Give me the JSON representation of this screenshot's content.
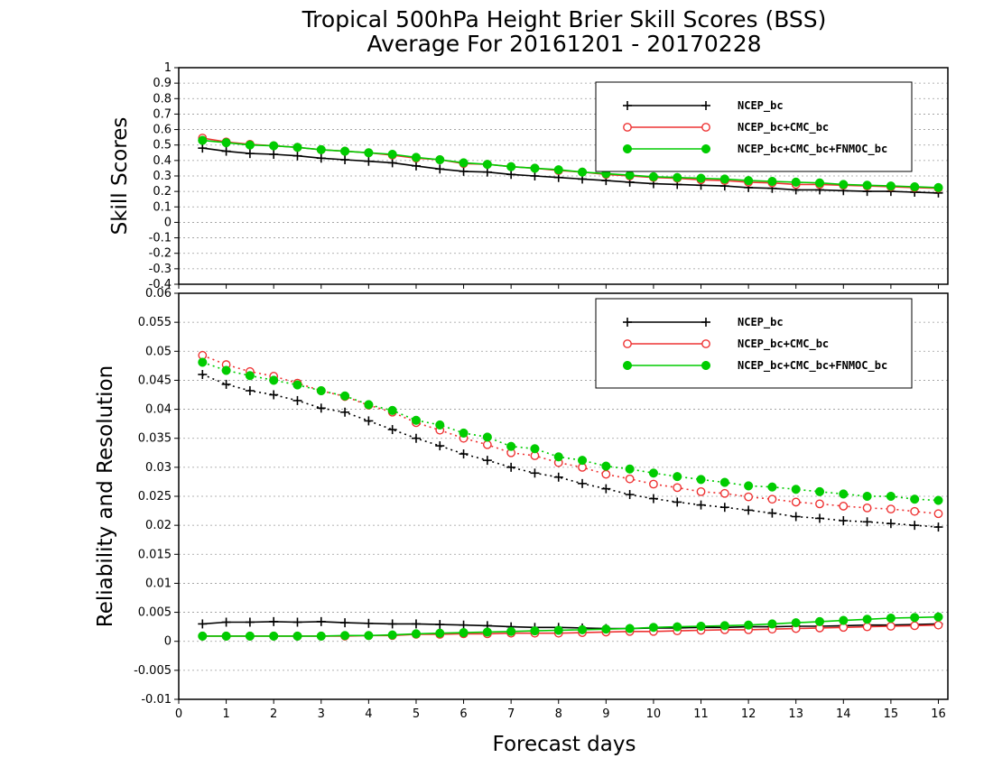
{
  "title_line1": "Tropical 500hPa Height Brier Skill Scores (BSS)",
  "title_line2": "Average For 20161201 - 20170228",
  "xlabel": "Forecast days",
  "colors": {
    "NCEP_bc": "#000000",
    "NCEP_bc+CMC_bc": "#ee3333",
    "NCEP_bc+CMC_bc+FNMOC_bc": "#00cc00"
  },
  "chart_data": [
    {
      "type": "line",
      "panel": "top",
      "ylabel": "Skill Scores",
      "xlim": [
        0,
        16.2
      ],
      "ylim": [
        -0.4,
        1.0
      ],
      "xticks": [
        "0",
        "1",
        "2",
        "3",
        "4",
        "5",
        "6",
        "7",
        "8",
        "9",
        "10",
        "11",
        "12",
        "13",
        "14",
        "15",
        "16"
      ],
      "yticks": [
        "1",
        "0.9",
        "0.8",
        "0.7",
        "0.6",
        "0.5",
        "0.4",
        "0.3",
        "0.2",
        "0.1",
        "0",
        "-0.1",
        "-0.2",
        "-0.3",
        "-0.4"
      ],
      "grid": true,
      "legend_position": "top-right",
      "x": [
        0.5,
        1,
        1.5,
        2,
        2.5,
        3,
        3.5,
        4,
        4.5,
        5,
        5.5,
        6,
        6.5,
        7,
        7.5,
        8,
        8.5,
        9,
        9.5,
        10,
        10.5,
        11,
        11.5,
        12,
        12.5,
        13,
        13.5,
        14,
        14.5,
        15,
        15.5,
        16
      ],
      "series": [
        {
          "name": "NCEP_bc",
          "marker": "plus",
          "style": "solid",
          "values": [
            0.48,
            0.46,
            0.445,
            0.44,
            0.43,
            0.415,
            0.405,
            0.395,
            0.385,
            0.365,
            0.345,
            0.33,
            0.325,
            0.31,
            0.3,
            0.29,
            0.28,
            0.27,
            0.26,
            0.25,
            0.245,
            0.24,
            0.235,
            0.225,
            0.22,
            0.21,
            0.21,
            0.205,
            0.2,
            0.2,
            0.195,
            0.19
          ]
        },
        {
          "name": "NCEP_bc+CMC_bc",
          "marker": "open-circle",
          "style": "solid",
          "values": [
            0.545,
            0.52,
            0.505,
            0.495,
            0.485,
            0.47,
            0.46,
            0.45,
            0.435,
            0.415,
            0.405,
            0.38,
            0.375,
            0.36,
            0.35,
            0.335,
            0.325,
            0.31,
            0.3,
            0.29,
            0.285,
            0.275,
            0.27,
            0.26,
            0.255,
            0.245,
            0.245,
            0.24,
            0.235,
            0.23,
            0.225,
            0.22
          ]
        },
        {
          "name": "NCEP_bc+CMC_bc+FNMOC_bc",
          "marker": "filled-circle",
          "style": "solid",
          "values": [
            0.53,
            0.515,
            0.5,
            0.495,
            0.485,
            0.47,
            0.46,
            0.45,
            0.44,
            0.42,
            0.405,
            0.385,
            0.375,
            0.36,
            0.35,
            0.34,
            0.325,
            0.315,
            0.305,
            0.295,
            0.29,
            0.285,
            0.28,
            0.27,
            0.265,
            0.26,
            0.255,
            0.245,
            0.24,
            0.235,
            0.23,
            0.225
          ]
        }
      ]
    },
    {
      "type": "line",
      "panel": "bottom",
      "ylabel": "Reliability and Resolution",
      "xlim": [
        0,
        16.2
      ],
      "ylim": [
        -0.01,
        0.06
      ],
      "xticks": [
        "0",
        "1",
        "2",
        "3",
        "4",
        "5",
        "6",
        "7",
        "8",
        "9",
        "10",
        "11",
        "12",
        "13",
        "14",
        "15",
        "16"
      ],
      "yticks": [
        "0.06",
        "0.055",
        "0.05",
        "0.045",
        "0.04",
        "0.035",
        "0.03",
        "0.025",
        "0.02",
        "0.015",
        "0.01",
        "0.005",
        "0",
        "-0.005",
        "-0.01"
      ],
      "grid": true,
      "legend_position": "top-right",
      "x": [
        0.5,
        1,
        1.5,
        2,
        2.5,
        3,
        3.5,
        4,
        4.5,
        5,
        5.5,
        6,
        6.5,
        7,
        7.5,
        8,
        8.5,
        9,
        9.5,
        10,
        10.5,
        11,
        11.5,
        12,
        12.5,
        13,
        13.5,
        14,
        14.5,
        15,
        15.5,
        16
      ],
      "series": [
        {
          "name": "NCEP_bc",
          "marker": "plus",
          "style": "dotted",
          "values": [
            0.046,
            0.0443,
            0.0432,
            0.0425,
            0.0415,
            0.0402,
            0.0395,
            0.038,
            0.0365,
            0.035,
            0.0337,
            0.0323,
            0.0312,
            0.03,
            0.029,
            0.0283,
            0.0272,
            0.0263,
            0.0253,
            0.0246,
            0.024,
            0.0235,
            0.0231,
            0.0226,
            0.0221,
            0.0215,
            0.0212,
            0.0208,
            0.0206,
            0.0203,
            0.02,
            0.0197
          ]
        },
        {
          "name": "NCEP_bc+CMC_bc",
          "marker": "open-circle",
          "style": "dotted",
          "values": [
            0.0493,
            0.0477,
            0.0465,
            0.0457,
            0.0445,
            0.0432,
            0.0422,
            0.0407,
            0.0395,
            0.0377,
            0.0364,
            0.035,
            0.0339,
            0.0325,
            0.032,
            0.0308,
            0.03,
            0.0288,
            0.028,
            0.0271,
            0.0265,
            0.0258,
            0.0255,
            0.0249,
            0.0245,
            0.024,
            0.0237,
            0.0233,
            0.023,
            0.0228,
            0.0224,
            0.022
          ]
        },
        {
          "name": "NCEP_bc+CMC_bc+FNMOC_bc",
          "marker": "filled-circle",
          "style": "dotted",
          "values": [
            0.0481,
            0.0467,
            0.0458,
            0.045,
            0.0442,
            0.0432,
            0.0423,
            0.0408,
            0.0398,
            0.0381,
            0.0373,
            0.0359,
            0.0352,
            0.0336,
            0.0332,
            0.0318,
            0.0312,
            0.0302,
            0.0297,
            0.029,
            0.0284,
            0.0279,
            0.0274,
            0.0268,
            0.0266,
            0.0262,
            0.0258,
            0.0254,
            0.025,
            0.025,
            0.0245,
            0.0243
          ]
        },
        {
          "name": "NCEP_bc resolution",
          "marker": "plus",
          "style": "solid",
          "color_key": "NCEP_bc",
          "values": [
            0.003,
            0.0033,
            0.0033,
            0.0034,
            0.0033,
            0.0034,
            0.0032,
            0.0031,
            0.003,
            0.003,
            0.0029,
            0.0028,
            0.0027,
            0.0025,
            0.0024,
            0.0024,
            0.0023,
            0.0022,
            0.0022,
            0.0023,
            0.0023,
            0.0024,
            0.0024,
            0.0025,
            0.0025,
            0.0026,
            0.0026,
            0.0027,
            0.0028,
            0.0028,
            0.0029,
            0.003
          ]
        },
        {
          "name": "NCEP_bc+CMC_bc resolution",
          "marker": "open-circle",
          "style": "solid",
          "color_key": "NCEP_bc+CMC_bc",
          "values": [
            0.0009,
            0.0009,
            0.0009,
            0.0009,
            0.0009,
            0.0009,
            0.0009,
            0.001,
            0.001,
            0.0012,
            0.0012,
            0.0013,
            0.0013,
            0.0014,
            0.0014,
            0.0014,
            0.0015,
            0.0016,
            0.0017,
            0.0017,
            0.0018,
            0.0019,
            0.002,
            0.002,
            0.0021,
            0.0022,
            0.0023,
            0.0024,
            0.0025,
            0.0026,
            0.0027,
            0.0028
          ]
        },
        {
          "name": "NCEP_bc+CMC_bc+FNMOC_bc resolution",
          "marker": "filled-circle",
          "style": "solid",
          "color_key": "NCEP_bc+CMC_bc+FNMOC_bc",
          "values": [
            0.0009,
            0.0009,
            0.0009,
            0.0009,
            0.0009,
            0.0009,
            0.001,
            0.001,
            0.0011,
            0.0013,
            0.0014,
            0.0015,
            0.0016,
            0.0017,
            0.0018,
            0.0019,
            0.002,
            0.0021,
            0.0022,
            0.0024,
            0.0025,
            0.0026,
            0.0027,
            0.0028,
            0.003,
            0.0032,
            0.0034,
            0.0036,
            0.0038,
            0.004,
            0.0041,
            0.0042
          ]
        }
      ]
    }
  ],
  "legend": {
    "items": [
      {
        "label": "NCEP_bc",
        "marker": "plus",
        "color_key": "NCEP_bc"
      },
      {
        "label": "NCEP_bc+CMC_bc",
        "marker": "open-circle",
        "color_key": "NCEP_bc+CMC_bc"
      },
      {
        "label": "NCEP_bc+CMC_bc+FNMOC_bc",
        "marker": "filled-circle",
        "color_key": "NCEP_bc+CMC_bc+FNMOC_bc"
      }
    ]
  }
}
